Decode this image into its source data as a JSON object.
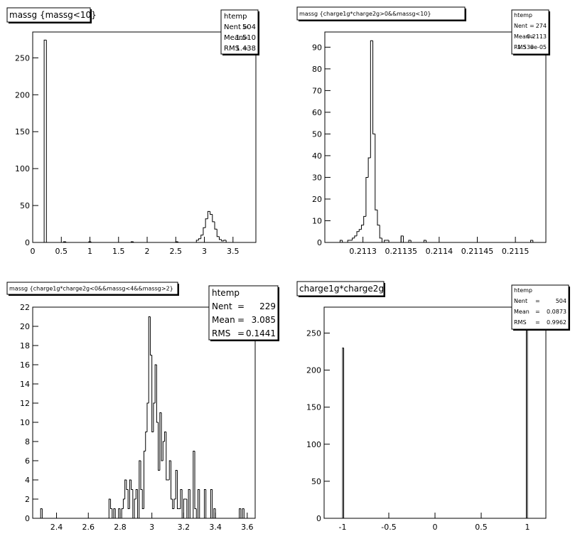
{
  "chart_data": [
    {
      "type": "bar",
      "title": "massg {massg<10}",
      "stats": {
        "name": "htemp",
        "entries_label": "Nent",
        "entries": "504",
        "mean_label": "Mean",
        "mean": "1.510",
        "rms_label": "RMS",
        "rms": "1.438"
      },
      "xlim": [
        0,
        3.9
      ],
      "ylim": [
        0,
        285
      ],
      "xticks": [
        {
          "v": 0,
          "label": "0"
        },
        {
          "v": 0.5,
          "label": "0.5"
        },
        {
          "v": 1,
          "label": "1"
        },
        {
          "v": 1.5,
          "label": "1.5"
        },
        {
          "v": 2,
          "label": "2"
        },
        {
          "v": 2.5,
          "label": "2.5"
        },
        {
          "v": 3,
          "label": "3"
        },
        {
          "v": 3.5,
          "label": "3.5"
        }
      ],
      "yticks": [
        {
          "v": 0,
          "label": "0"
        },
        {
          "v": 50,
          "label": "50"
        },
        {
          "v": 100,
          "label": "100"
        },
        {
          "v": 150,
          "label": "150"
        },
        {
          "v": 200,
          "label": "200"
        },
        {
          "v": 250,
          "label": "250"
        }
      ],
      "bins": {
        "edges": [
          0.2,
          0.24,
          0.54,
          0.58,
          0.98,
          1.02,
          1.72,
          1.76,
          2.5,
          2.54,
          2.86,
          2.9,
          2.94,
          2.98,
          3.02,
          3.06,
          3.1,
          3.14,
          3.18,
          3.22,
          3.26,
          3.3,
          3.34,
          3.38
        ],
        "values": [
          274,
          0,
          1,
          0,
          1,
          0,
          1,
          0,
          1,
          0,
          3,
          5,
          10,
          20,
          32,
          42,
          38,
          28,
          18,
          8,
          4,
          2,
          3
        ]
      }
    },
    {
      "type": "bar",
      "title": "massg {charge1g*charge2g>0&&massg<10}",
      "stats": {
        "name": "htemp",
        "entries_label": "Nent",
        "entries": "274",
        "mean_label": "Mean",
        "mean": "0.2113",
        "rms_label": "RMS",
        "rms": "1.538e-05"
      },
      "xlim": [
        0.21125,
        0.21154
      ],
      "ylim": [
        0,
        97
      ],
      "xticks": [
        {
          "v": 0.2113,
          "label": "0.2113"
        },
        {
          "v": 0.21135,
          "label": "0.21135"
        },
        {
          "v": 0.2114,
          "label": "0.2114"
        },
        {
          "v": 0.21145,
          "label": "0.21145"
        },
        {
          "v": 0.2115,
          "label": "0.2115"
        }
      ],
      "yticks": [
        {
          "v": 0,
          "label": "0"
        },
        {
          "v": 10,
          "label": "10"
        },
        {
          "v": 20,
          "label": "20"
        },
        {
          "v": 30,
          "label": "30"
        },
        {
          "v": 40,
          "label": "40"
        },
        {
          "v": 50,
          "label": "50"
        },
        {
          "v": 60,
          "label": "60"
        },
        {
          "v": 70,
          "label": "70"
        },
        {
          "v": 80,
          "label": "80"
        },
        {
          "v": 90,
          "label": "90"
        }
      ],
      "bins": {
        "edges": [
          0.21127,
          0.211273,
          0.21128,
          0.211283,
          0.211286,
          0.211289,
          0.211292,
          0.211295,
          0.211298,
          0.211301,
          0.211304,
          0.211307,
          0.21131,
          0.211313,
          0.211316,
          0.211319,
          0.211322,
          0.211325,
          0.211328,
          0.211331,
          0.211334,
          0.211337,
          0.21134,
          0.211343,
          0.211346,
          0.21135,
          0.211353,
          0.21136,
          0.211363,
          0.21138,
          0.211383,
          0.21152,
          0.211523
        ],
        "values": [
          1,
          0,
          1,
          1,
          2,
          3,
          5,
          6,
          8,
          12,
          30,
          39,
          93,
          50,
          15,
          8,
          2,
          0,
          1,
          1,
          0,
          0,
          0,
          0,
          0,
          3,
          0,
          1,
          0,
          1,
          0,
          1
        ]
      }
    },
    {
      "type": "bar",
      "title": "massg {charge1g*charge2g<0&&massg<4&&massg>2}",
      "stats": {
        "name": "htemp",
        "entries_label": "Nent",
        "entries": "229",
        "mean_label": "Mean",
        "mean": "3.085",
        "rms_label": "RMS",
        "rms": "0.1441"
      },
      "xlim": [
        2.25,
        3.65
      ],
      "ylim": [
        0,
        22
      ],
      "xticks": [
        {
          "v": 2.4,
          "label": "2.4"
        },
        {
          "v": 2.6,
          "label": "2.6"
        },
        {
          "v": 2.8,
          "label": "2.8"
        },
        {
          "v": 3,
          "label": "3"
        },
        {
          "v": 3.2,
          "label": "3.2"
        },
        {
          "v": 3.4,
          "label": "3.4"
        },
        {
          "v": 3.6,
          "label": "3.6"
        }
      ],
      "yticks": [
        {
          "v": 0,
          "label": "0"
        },
        {
          "v": 2,
          "label": "2"
        },
        {
          "v": 4,
          "label": "4"
        },
        {
          "v": 6,
          "label": "6"
        },
        {
          "v": 8,
          "label": "8"
        },
        {
          "v": 10,
          "label": "10"
        },
        {
          "v": 12,
          "label": "12"
        },
        {
          "v": 14,
          "label": "14"
        },
        {
          "v": 16,
          "label": "16"
        },
        {
          "v": 18,
          "label": "18"
        },
        {
          "v": 20,
          "label": "20"
        },
        {
          "v": 22,
          "label": "22"
        }
      ],
      "bins": {
        "edges": [
          2.3,
          2.31,
          2.73,
          2.74,
          2.75,
          2.76,
          2.77,
          2.78,
          2.79,
          2.8,
          2.81,
          2.82,
          2.83,
          2.84,
          2.85,
          2.86,
          2.87,
          2.88,
          2.89,
          2.9,
          2.91,
          2.92,
          2.93,
          2.94,
          2.95,
          2.96,
          2.97,
          2.98,
          2.99,
          3.0,
          3.01,
          3.02,
          3.03,
          3.04,
          3.05,
          3.06,
          3.07,
          3.08,
          3.09,
          3.1,
          3.11,
          3.12,
          3.13,
          3.14,
          3.15,
          3.16,
          3.17,
          3.18,
          3.19,
          3.2,
          3.21,
          3.22,
          3.23,
          3.24,
          3.25,
          3.26,
          3.27,
          3.28,
          3.29,
          3.3,
          3.31,
          3.32,
          3.33,
          3.34,
          3.35,
          3.36,
          3.37,
          3.38,
          3.39,
          3.4,
          3.45,
          3.46,
          3.55,
          3.56,
          3.57,
          3.58
        ],
        "values": [
          1,
          0,
          2,
          1,
          0,
          1,
          0,
          0,
          1,
          0,
          1,
          2,
          4,
          3,
          1,
          4,
          3,
          0,
          2,
          3,
          0,
          6,
          3,
          1,
          7,
          9,
          12,
          21,
          17,
          9,
          12,
          16,
          10,
          5,
          11,
          6,
          8,
          9,
          4,
          4,
          6,
          2,
          1,
          2,
          5,
          1,
          1,
          3,
          0,
          2,
          2,
          0,
          3,
          0,
          0,
          7,
          1,
          0,
          3,
          0,
          0,
          0,
          3,
          0,
          0,
          0,
          3,
          0,
          1,
          0,
          0,
          0,
          1,
          0,
          1
        ]
      }
    },
    {
      "type": "bar",
      "title": "charge1g*charge2g",
      "stats": {
        "name": "htemp",
        "entries_label": "Nent",
        "entries": "504",
        "mean_label": "Mean",
        "mean": "0.0873",
        "rms_label": "RMS",
        "rms": "0.9962"
      },
      "xlim": [
        -1.2,
        1.2
      ],
      "ylim": [
        0,
        285
      ],
      "xticks": [
        {
          "v": -1,
          "label": "-1"
        },
        {
          "v": -0.5,
          "label": "-0.5"
        },
        {
          "v": 0,
          "label": "0"
        },
        {
          "v": 0.5,
          "label": "0.5"
        },
        {
          "v": 1,
          "label": "1"
        }
      ],
      "yticks": [
        {
          "v": 0,
          "label": "0"
        },
        {
          "v": 50,
          "label": "50"
        },
        {
          "v": 100,
          "label": "100"
        },
        {
          "v": 150,
          "label": "150"
        },
        {
          "v": 200,
          "label": "200"
        },
        {
          "v": 250,
          "label": "250"
        }
      ],
      "bins": {
        "edges": [
          -1.0,
          -0.988,
          0.988,
          1.0
        ],
        "values": [
          230,
          0,
          274
        ]
      }
    }
  ]
}
